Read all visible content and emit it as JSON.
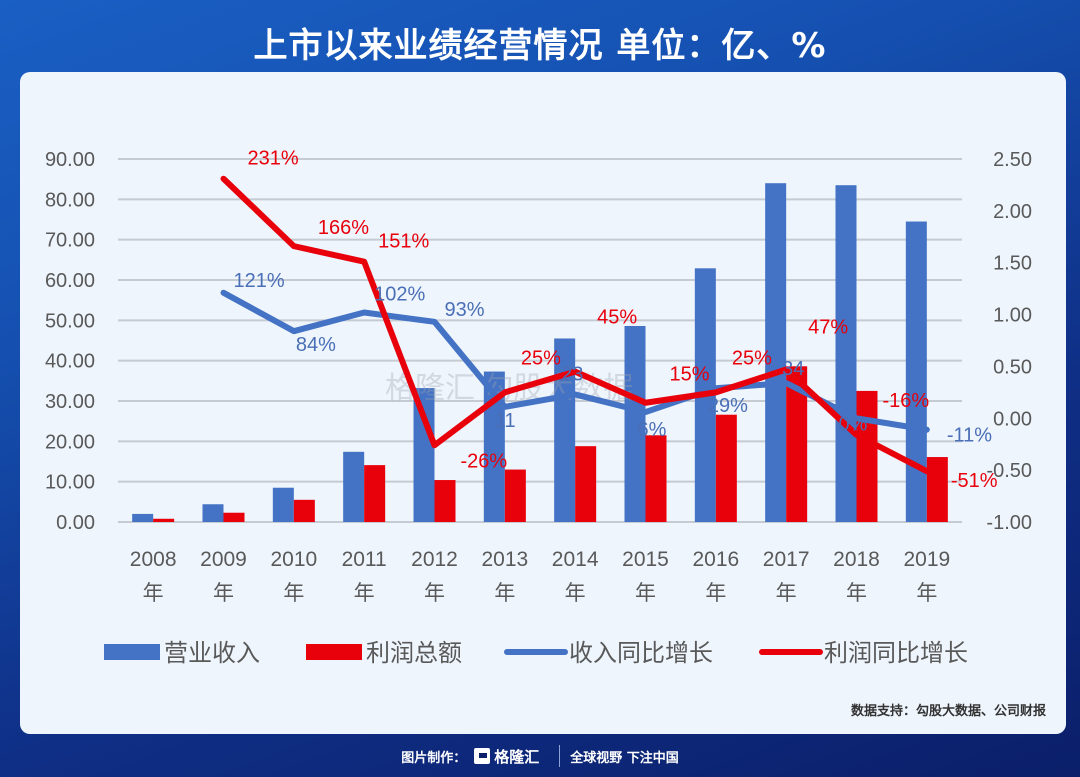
{
  "header": {
    "title": "上市以来业绩经营情况 单位：亿、%"
  },
  "source": "数据支持：勾股大数据、公司财报",
  "footer": {
    "made_by": "图片制作：",
    "brand": "格隆汇",
    "slogan": "全球视野 下注中国"
  },
  "watermark": "格隆汇 勾股大数据",
  "colors": {
    "revenue": "#4472c4",
    "profit": "#e8000b",
    "bg_card": "#eef5fd",
    "axis_text": "#595959"
  },
  "chart_data": {
    "type": "bar+line",
    "title": "上市以来业绩经营情况 单位：亿、%",
    "categories": [
      "2008年",
      "2009年",
      "2010年",
      "2011年",
      "2012年",
      "2013年",
      "2014年",
      "2015年",
      "2016年",
      "2017年",
      "2018年",
      "2019年"
    ],
    "category_labels": [
      [
        "2008",
        "年"
      ],
      [
        "2009",
        "年"
      ],
      [
        "2010",
        "年"
      ],
      [
        "2011",
        "年"
      ],
      [
        "2012",
        "年"
      ],
      [
        "2013",
        "年"
      ],
      [
        "2014",
        "年"
      ],
      [
        "2015",
        "年"
      ],
      [
        "2016",
        "年"
      ],
      [
        "2017",
        "年"
      ],
      [
        "2018",
        "年"
      ],
      [
        "2019",
        "年"
      ]
    ],
    "left_axis": {
      "ticks": [
        "90.00",
        "80.00",
        "70.00",
        "60.00",
        "50.00",
        "40.00",
        "30.00",
        "20.00",
        "10.00",
        "0.00"
      ],
      "ylim": [
        0,
        90
      ]
    },
    "right_axis": {
      "ticks": [
        "2.50",
        "2.00",
        "1.50",
        "1.00",
        "0.50",
        "0.00",
        "-0.50",
        "-1.00"
      ],
      "ylim": [
        -1.0,
        2.5
      ]
    },
    "series": [
      {
        "name": "营业收入",
        "type": "bar",
        "axis": "left",
        "color": "#4472c4",
        "values": [
          2.0,
          4.4,
          8.5,
          17.4,
          33.2,
          37.3,
          45.5,
          48.6,
          62.9,
          84.0,
          83.5,
          74.5
        ]
      },
      {
        "name": "利润总额",
        "type": "bar",
        "axis": "left",
        "color": "#e8000b",
        "values": [
          0.8,
          2.3,
          5.5,
          14.1,
          10.4,
          13.0,
          18.8,
          21.5,
          26.6,
          38.6,
          32.5,
          16.1
        ]
      },
      {
        "name": "收入同比增长",
        "type": "line",
        "axis": "right",
        "color": "#4472c4",
        "values": [
          null,
          1.21,
          0.84,
          1.02,
          0.93,
          0.11,
          0.23,
          0.06,
          0.29,
          0.34,
          0.0,
          -0.11
        ],
        "labels": [
          "",
          "121%",
          "84%",
          "102%",
          "93%",
          "11",
          "23",
          "6%",
          "29%",
          "34",
          "0%",
          "-11%"
        ]
      },
      {
        "name": "利润同比增长",
        "type": "line",
        "axis": "right",
        "color": "#e8000b",
        "values": [
          null,
          2.31,
          1.66,
          1.51,
          -0.26,
          0.25,
          0.45,
          0.15,
          0.25,
          0.47,
          -0.16,
          -0.51
        ],
        "labels": [
          "",
          "231%",
          "166%",
          "151%",
          "-26%",
          "25%",
          "45%",
          "15%",
          "25%",
          "47%",
          "-16%",
          "-51%"
        ]
      }
    ],
    "legend": {
      "position": "bottom",
      "items": [
        "营业收入",
        "利润总额",
        "收入同比增长",
        "利润同比增长"
      ]
    },
    "grid": true
  }
}
